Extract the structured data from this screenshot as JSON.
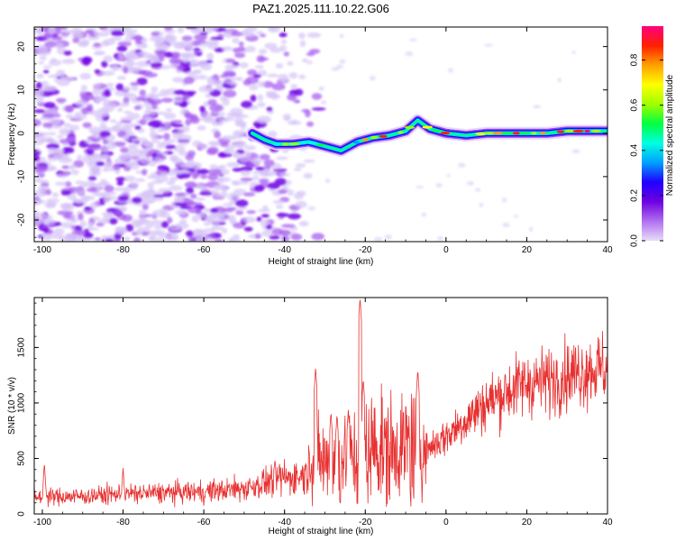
{
  "title": "PAZ1.2025.111.10.22.G06",
  "chart_data": [
    {
      "type": "heatmap",
      "xlabel": "Height of straight line (km)",
      "ylabel": "Frequency (Hz)",
      "xlim": [
        -102,
        40
      ],
      "ylim": [
        -25,
        24.5
      ],
      "xticks": [
        -100,
        -80,
        -60,
        -40,
        -20,
        0,
        20,
        40
      ],
      "yticks": [
        -20,
        -10,
        0,
        10,
        20
      ],
      "colorbar": {
        "label": "Normalized spectral amplitude",
        "range": [
          0,
          0.95
        ],
        "ticks": [
          0.0,
          0.2,
          0.4,
          0.6,
          0.8
        ],
        "colors": [
          "#e8dcf8",
          "#b070f0",
          "#7000e0",
          "#2000ff",
          "#00a0ff",
          "#00ffe0",
          "#00ff40",
          "#a0ff00",
          "#ffff00",
          "#ffa000",
          "#ff2000",
          "#ff0080"
        ]
      },
      "ridge": {
        "x": [
          -48,
          -45,
          -42,
          -38,
          -34,
          -30,
          -26,
          -22,
          -18,
          -14,
          -10,
          -7,
          -4,
          0,
          5,
          10,
          15,
          20,
          25,
          30,
          35,
          40
        ],
        "freq": [
          0,
          -1.5,
          -2.5,
          -2.5,
          -2,
          -3,
          -4,
          -2,
          -1,
          -0.5,
          0.5,
          3,
          1,
          0,
          -0.5,
          0,
          0,
          0,
          0,
          0.5,
          0.5,
          0.5
        ]
      }
    },
    {
      "type": "line",
      "xlabel": "Height of straight line (km)",
      "ylabel": "SNR (10 * v/v)",
      "xlim": [
        -102,
        40
      ],
      "ylim": [
        0,
        1950
      ],
      "xticks": [
        -100,
        -80,
        -60,
        -40,
        -20,
        0,
        20,
        40
      ],
      "yticks": [
        0,
        500,
        1000,
        1500
      ],
      "color": "#e83030",
      "envelope": {
        "x": [
          -102,
          -90,
          -80,
          -70,
          -60,
          -50,
          -45,
          -42,
          -38,
          -35,
          -33,
          -30,
          -27,
          -24,
          -21,
          -18,
          -15,
          -10,
          -7,
          -5,
          0,
          5,
          10,
          15,
          20,
          25,
          30,
          35,
          40
        ],
        "snr": [
          150,
          160,
          180,
          190,
          200,
          230,
          280,
          320,
          330,
          350,
          500,
          500,
          480,
          530,
          580,
          620,
          600,
          640,
          620,
          580,
          700,
          850,
          1000,
          1100,
          1180,
          1200,
          1250,
          1300,
          1320
        ]
      },
      "spikes": [
        {
          "x": -99.5,
          "snr": 460
        },
        {
          "x": -80,
          "snr": 420
        },
        {
          "x": -32.3,
          "snr": 1320
        },
        {
          "x": -28.5,
          "snr": 920
        },
        {
          "x": -27,
          "snr": 900
        },
        {
          "x": -24.2,
          "snr": 940
        },
        {
          "x": -21.3,
          "snr": 1950
        },
        {
          "x": -20.5,
          "snr": 1220
        },
        {
          "x": -7,
          "snr": 1300
        }
      ]
    }
  ]
}
